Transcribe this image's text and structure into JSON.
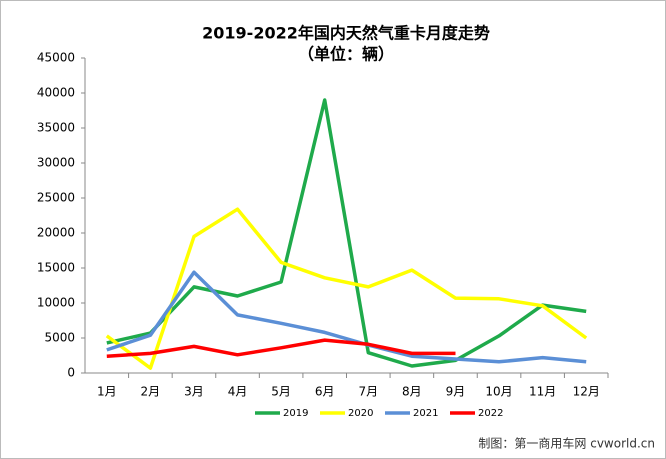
{
  "chart_data": {
    "type": "line",
    "title": "2019-2022年国内天然气重卡月度走势",
    "subtitle": "（单位：辆）",
    "source": "制图：第一商用车网 cvworld.cn",
    "categories": [
      "1月",
      "2月",
      "3月",
      "4月",
      "5月",
      "6月",
      "7月",
      "8月",
      "9月",
      "10月",
      "11月",
      "12月"
    ],
    "series": [
      {
        "name": "2019",
        "color": "#1faa4b",
        "values": [
          4300,
          5700,
          12300,
          11000,
          13000,
          39000,
          2900,
          1000,
          1800,
          5300,
          9700,
          8800
        ]
      },
      {
        "name": "2020",
        "color": "#ffff00",
        "values": [
          5300,
          700,
          19500,
          23400,
          15800,
          13600,
          12300,
          14700,
          10700,
          10600,
          9600,
          5000
        ]
      },
      {
        "name": "2021",
        "color": "#5b8fd6",
        "values": [
          3300,
          5400,
          14400,
          8300,
          7100,
          5800,
          4000,
          2400,
          2000,
          1600,
          2200,
          1600
        ]
      },
      {
        "name": "2022",
        "color": "#ff0000",
        "values": [
          2400,
          2800,
          3800,
          2600,
          3600,
          4700,
          4100,
          2800,
          2800,
          null,
          null,
          null
        ]
      }
    ],
    "ylim": [
      0,
      45000
    ],
    "yticks": [
      0,
      5000,
      10000,
      15000,
      20000,
      25000,
      30000,
      35000,
      40000,
      45000
    ],
    "legend": "bottom"
  }
}
